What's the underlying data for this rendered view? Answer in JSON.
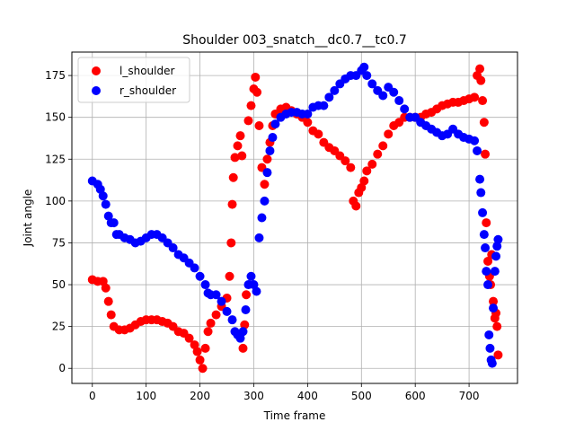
{
  "chart_data": {
    "type": "scatter",
    "title": "Shoulder 003_snatch__dc0.7__tc0.7",
    "xlabel": "Time frame",
    "ylabel": "Joint angle",
    "xlim": [
      -38,
      790
    ],
    "ylim": [
      -9,
      189
    ],
    "xticks": [
      0,
      100,
      200,
      300,
      400,
      500,
      600,
      700
    ],
    "yticks": [
      0,
      25,
      50,
      75,
      100,
      125,
      150,
      175
    ],
    "grid": true,
    "legend_position": "upper-left",
    "series": [
      {
        "name": "l_shoulder",
        "color": "#ff0000",
        "points": [
          [
            0,
            53
          ],
          [
            10,
            52
          ],
          [
            20,
            52
          ],
          [
            25,
            48
          ],
          [
            30,
            40
          ],
          [
            35,
            32
          ],
          [
            40,
            25
          ],
          [
            50,
            23
          ],
          [
            60,
            23
          ],
          [
            70,
            24
          ],
          [
            80,
            26
          ],
          [
            90,
            28
          ],
          [
            100,
            29
          ],
          [
            110,
            29
          ],
          [
            120,
            29
          ],
          [
            130,
            28
          ],
          [
            140,
            27
          ],
          [
            150,
            25
          ],
          [
            160,
            22
          ],
          [
            170,
            21
          ],
          [
            180,
            18
          ],
          [
            190,
            14
          ],
          [
            195,
            10
          ],
          [
            200,
            5
          ],
          [
            205,
            0
          ],
          [
            210,
            12
          ],
          [
            215,
            22
          ],
          [
            220,
            27
          ],
          [
            230,
            32
          ],
          [
            240,
            37
          ],
          [
            250,
            42
          ],
          [
            255,
            55
          ],
          [
            258,
            75
          ],
          [
            260,
            98
          ],
          [
            262,
            114
          ],
          [
            265,
            126
          ],
          [
            270,
            133
          ],
          [
            275,
            139
          ],
          [
            278,
            127
          ],
          [
            280,
            12
          ],
          [
            283,
            26
          ],
          [
            286,
            44
          ],
          [
            290,
            148
          ],
          [
            295,
            157
          ],
          [
            300,
            167
          ],
          [
            303,
            174
          ],
          [
            306,
            165
          ],
          [
            310,
            145
          ],
          [
            315,
            120
          ],
          [
            320,
            110
          ],
          [
            325,
            125
          ],
          [
            330,
            135
          ],
          [
            335,
            145
          ],
          [
            340,
            152
          ],
          [
            350,
            155
          ],
          [
            360,
            156
          ],
          [
            370,
            154
          ],
          [
            380,
            152
          ],
          [
            390,
            150
          ],
          [
            400,
            147
          ],
          [
            410,
            142
          ],
          [
            420,
            140
          ],
          [
            430,
            135
          ],
          [
            440,
            132
          ],
          [
            450,
            130
          ],
          [
            460,
            127
          ],
          [
            470,
            124
          ],
          [
            480,
            120
          ],
          [
            485,
            100
          ],
          [
            490,
            97
          ],
          [
            495,
            105
          ],
          [
            500,
            108
          ],
          [
            505,
            112
          ],
          [
            510,
            118
          ],
          [
            520,
            122
          ],
          [
            530,
            128
          ],
          [
            540,
            133
          ],
          [
            550,
            140
          ],
          [
            560,
            145
          ],
          [
            570,
            147
          ],
          [
            580,
            150
          ],
          [
            590,
            150
          ],
          [
            600,
            150
          ],
          [
            610,
            150
          ],
          [
            620,
            152
          ],
          [
            630,
            153
          ],
          [
            640,
            155
          ],
          [
            650,
            157
          ],
          [
            660,
            158
          ],
          [
            670,
            159
          ],
          [
            680,
            159
          ],
          [
            690,
            160
          ],
          [
            700,
            161
          ],
          [
            710,
            162
          ],
          [
            715,
            175
          ],
          [
            720,
            179
          ],
          [
            722,
            172
          ],
          [
            725,
            160
          ],
          [
            728,
            147
          ],
          [
            730,
            128
          ],
          [
            732,
            87
          ],
          [
            735,
            64
          ],
          [
            738,
            55
          ],
          [
            740,
            50
          ],
          [
            742,
            68
          ],
          [
            745,
            40
          ],
          [
            748,
            30
          ],
          [
            750,
            33
          ],
          [
            752,
            25
          ],
          [
            754,
            8
          ]
        ]
      },
      {
        "name": "r_shoulder",
        "color": "#0000ff",
        "points": [
          [
            0,
            112
          ],
          [
            10,
            110
          ],
          [
            15,
            107
          ],
          [
            20,
            103
          ],
          [
            25,
            98
          ],
          [
            30,
            91
          ],
          [
            35,
            87
          ],
          [
            40,
            87
          ],
          [
            45,
            80
          ],
          [
            50,
            80
          ],
          [
            60,
            78
          ],
          [
            70,
            77
          ],
          [
            80,
            75
          ],
          [
            90,
            76
          ],
          [
            100,
            78
          ],
          [
            110,
            80
          ],
          [
            120,
            80
          ],
          [
            130,
            78
          ],
          [
            140,
            75
          ],
          [
            150,
            72
          ],
          [
            160,
            68
          ],
          [
            170,
            66
          ],
          [
            180,
            63
          ],
          [
            190,
            60
          ],
          [
            200,
            55
          ],
          [
            210,
            50
          ],
          [
            215,
            45
          ],
          [
            220,
            44
          ],
          [
            230,
            44
          ],
          [
            240,
            40
          ],
          [
            250,
            34
          ],
          [
            260,
            29
          ],
          [
            265,
            22
          ],
          [
            270,
            20
          ],
          [
            275,
            18
          ],
          [
            280,
            22
          ],
          [
            285,
            35
          ],
          [
            290,
            50
          ],
          [
            295,
            55
          ],
          [
            300,
            50
          ],
          [
            305,
            46
          ],
          [
            310,
            78
          ],
          [
            315,
            90
          ],
          [
            320,
            100
          ],
          [
            325,
            117
          ],
          [
            330,
            130
          ],
          [
            335,
            138
          ],
          [
            340,
            146
          ],
          [
            350,
            150
          ],
          [
            360,
            152
          ],
          [
            370,
            153
          ],
          [
            380,
            153
          ],
          [
            390,
            152
          ],
          [
            400,
            152
          ],
          [
            410,
            156
          ],
          [
            420,
            157
          ],
          [
            430,
            157
          ],
          [
            440,
            162
          ],
          [
            450,
            166
          ],
          [
            460,
            170
          ],
          [
            470,
            173
          ],
          [
            480,
            175
          ],
          [
            490,
            175
          ],
          [
            500,
            178
          ],
          [
            505,
            180
          ],
          [
            510,
            175
          ],
          [
            520,
            170
          ],
          [
            530,
            166
          ],
          [
            540,
            163
          ],
          [
            550,
            168
          ],
          [
            560,
            165
          ],
          [
            570,
            160
          ],
          [
            580,
            155
          ],
          [
            590,
            150
          ],
          [
            600,
            150
          ],
          [
            610,
            147
          ],
          [
            620,
            145
          ],
          [
            630,
            143
          ],
          [
            640,
            141
          ],
          [
            650,
            139
          ],
          [
            660,
            140
          ],
          [
            670,
            143
          ],
          [
            680,
            140
          ],
          [
            690,
            138
          ],
          [
            700,
            137
          ],
          [
            710,
            136
          ],
          [
            715,
            130
          ],
          [
            720,
            113
          ],
          [
            722,
            105
          ],
          [
            725,
            93
          ],
          [
            728,
            80
          ],
          [
            730,
            72
          ],
          [
            732,
            58
          ],
          [
            735,
            50
          ],
          [
            737,
            20
          ],
          [
            739,
            12
          ],
          [
            741,
            5
          ],
          [
            743,
            3
          ],
          [
            745,
            36
          ],
          [
            748,
            58
          ],
          [
            750,
            67
          ],
          [
            752,
            73
          ],
          [
            754,
            77
          ]
        ]
      }
    ]
  }
}
